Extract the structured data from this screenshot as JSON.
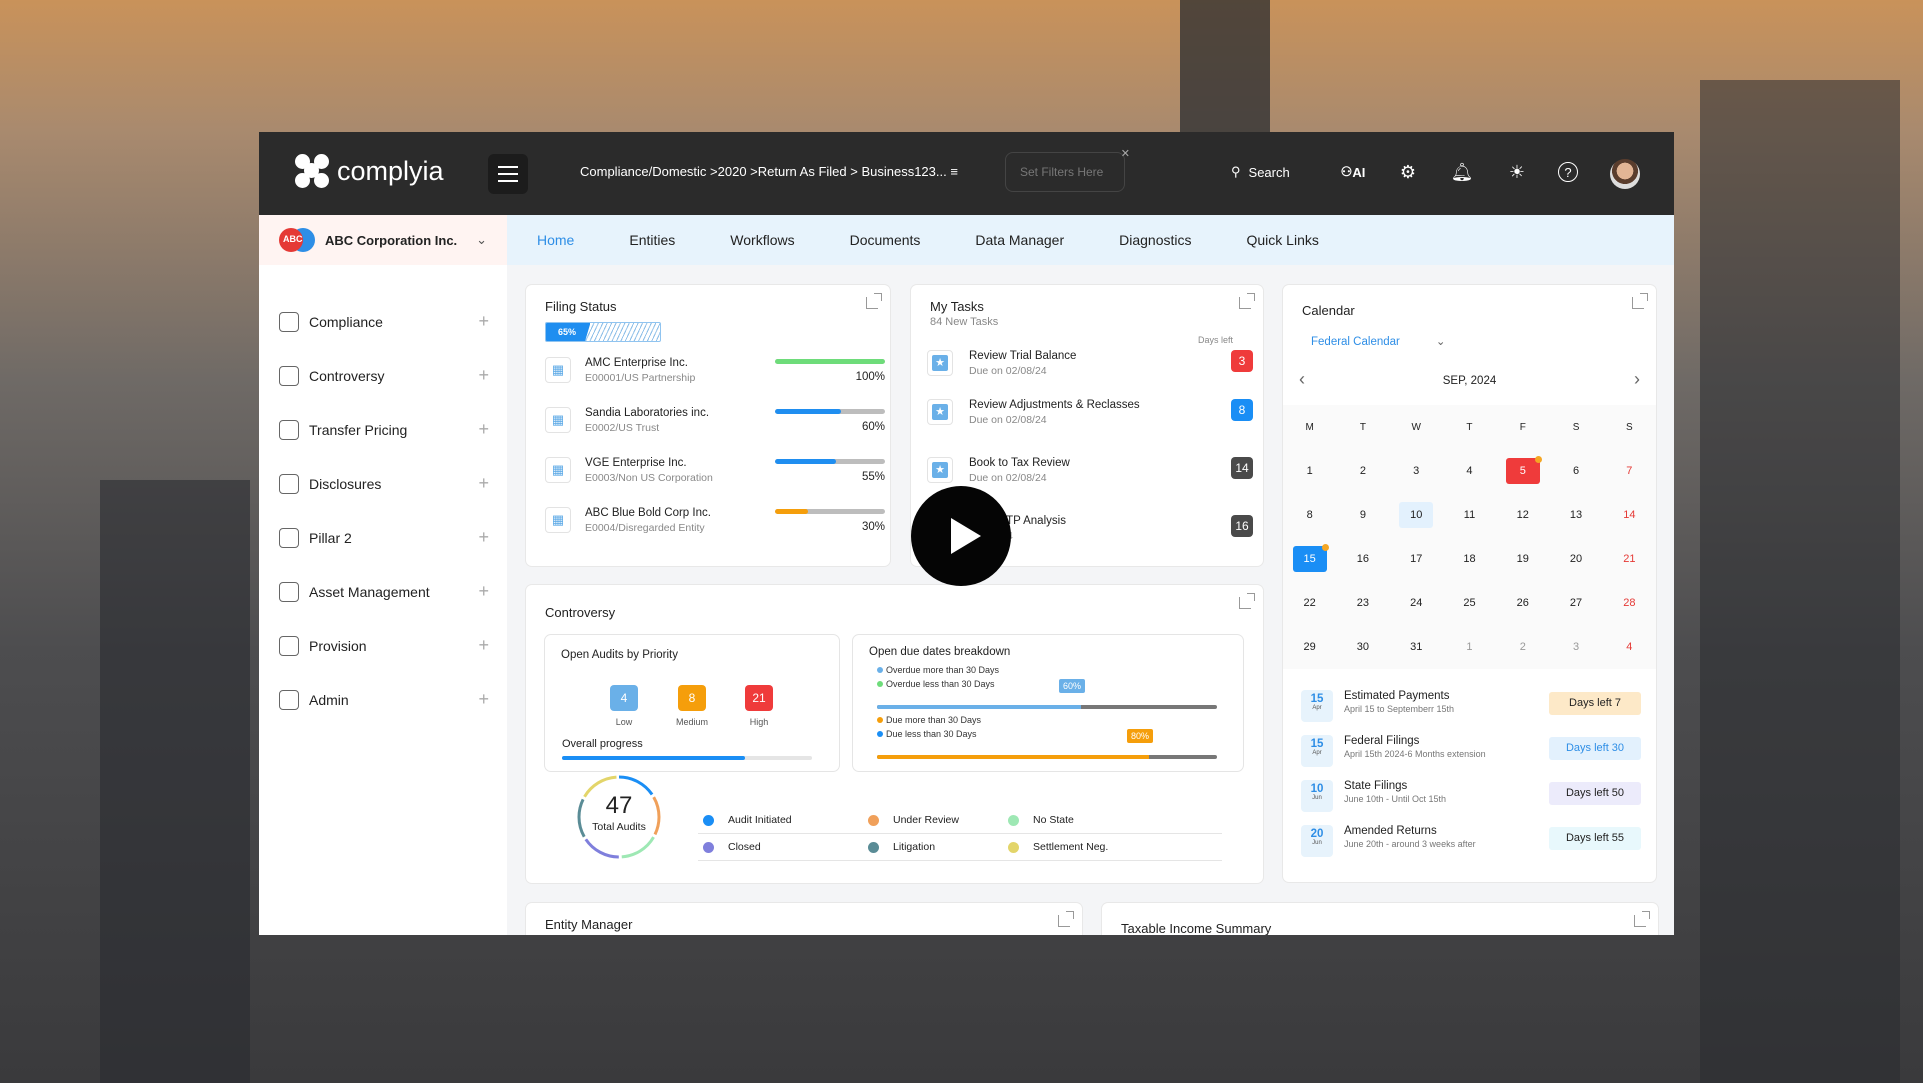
{
  "header": {
    "brand": "complyia",
    "breadcrumb": "Compliance/Domestic >2020 >Return As Filed > Business123...",
    "filter_placeholder": "Set Filters Here",
    "search_label": "Search",
    "ai_label": "AI"
  },
  "company": {
    "initials": "ABC",
    "name": "ABC Corporation Inc."
  },
  "sidebar": {
    "items": [
      {
        "label": "Compliance",
        "icon": "bank-icon"
      },
      {
        "label": "Controversy",
        "icon": "clipboard-icon"
      },
      {
        "label": "Transfer Pricing",
        "icon": "chart-icon"
      },
      {
        "label": "Disclosures",
        "icon": "user-icon"
      },
      {
        "label": "Pillar 2",
        "icon": "globe-icon"
      },
      {
        "label": "Asset Management",
        "icon": "building-icon"
      },
      {
        "label": "Provision",
        "icon": "dollar-icon"
      },
      {
        "label": "Admin",
        "icon": "admin-icon"
      }
    ]
  },
  "tabs": [
    {
      "label": "Home",
      "active": true
    },
    {
      "label": "Entities"
    },
    {
      "label": "Workflows"
    },
    {
      "label": "Documents"
    },
    {
      "label": "Data Manager"
    },
    {
      "label": "Diagnostics"
    },
    {
      "label": "Quick Links"
    }
  ],
  "filing": {
    "title": "Filing Status",
    "overall": "65%",
    "overall_value": 65,
    "rows": [
      {
        "name": "AMC Enterprise Inc.",
        "sub": "E00001/US Partnership",
        "pct": "100%",
        "value": 100,
        "color": "#6edc7a"
      },
      {
        "name": "Sandia Laboratories inc.",
        "sub": "E0002/US Trust",
        "pct": "60%",
        "value": 60,
        "color": "#1f8ef0"
      },
      {
        "name": "VGE Enterprise Inc.",
        "sub": "E0003/Non US Corporation",
        "pct": "55%",
        "value": 55,
        "color": "#1f8ef0"
      },
      {
        "name": "ABC Blue Bold Corp Inc.",
        "sub": "E0004/Disregarded Entity",
        "pct": "30%",
        "value": 30,
        "color": "#f59e0b"
      }
    ]
  },
  "tasks": {
    "title": "My Tasks",
    "subtitle": "84 New Tasks",
    "days_left_label": "Days left",
    "rows": [
      {
        "name": "Review Trial Balance",
        "due": "Due on 02/08/24",
        "days": "3",
        "color": "#ef3b3b"
      },
      {
        "name": "Review Adjustments & Reclasses",
        "due": "Due on 02/08/24",
        "days": "8",
        "color": "#1a8ef5"
      },
      {
        "name": "Book to Tax Review",
        "due": "Due on 02/08/24",
        "days": "14",
        "color": "#4a4a4a"
      },
      {
        "name": "...ete UTP Analysis",
        "due": "...2/08/24",
        "days": "16",
        "color": "#4a4a4a"
      }
    ]
  },
  "controversy": {
    "title": "Controversy",
    "priority": {
      "title": "Open Audits by Priority",
      "items": [
        {
          "value": "4",
          "label": "Low",
          "color": "#6ab0e8"
        },
        {
          "value": "8",
          "label": "Medium",
          "color": "#f59e0b"
        },
        {
          "value": "21",
          "label": "High",
          "color": "#ef3b3b"
        }
      ],
      "progress_label": "Overall progress",
      "progress": 73
    },
    "due": {
      "title": "Open due dates breakdown",
      "overdue": {
        "legend": [
          {
            "label": "Overdue more than 30 Days",
            "color": "#6ab0e8"
          },
          {
            "label": "Overdue less than 30 Days",
            "color": "#6edc7a"
          }
        ],
        "pct": "60%",
        "value": 60,
        "color": "#6ab0e8"
      },
      "upcoming": {
        "legend": [
          {
            "label": "Due more than 30 Days",
            "color": "#f59e0b"
          },
          {
            "label": "Due less than 30 Days",
            "color": "#1a8ef5"
          }
        ],
        "pct": "80%",
        "value": 80,
        "color": "#f59e0b"
      }
    },
    "total": {
      "value": "47",
      "label": "Total Audits"
    },
    "status": [
      {
        "label": "Audit Initiated",
        "color": "#1a8ef5"
      },
      {
        "label": "Under Review",
        "color": "#f0a05a"
      },
      {
        "label": "No State",
        "color": "#9ee8b4"
      },
      {
        "label": "Closed",
        "color": "#7f7fdc"
      },
      {
        "label": "Litigation",
        "color": "#5a8c96"
      },
      {
        "label": "Settlement Neg.",
        "color": "#e3d56a"
      }
    ]
  },
  "calendar": {
    "title": "Calendar",
    "selector": "Federal Calendar",
    "month": "SEP, 2024",
    "weekdays": [
      "M",
      "T",
      "W",
      "T",
      "F",
      "S",
      "S"
    ],
    "weeks": [
      [
        "1",
        "2",
        "3",
        "4",
        "5",
        "6",
        "7"
      ],
      [
        "8",
        "9",
        "10",
        "11",
        "12",
        "13",
        "14"
      ],
      [
        "15",
        "16",
        "17",
        "18",
        "19",
        "20",
        "21"
      ],
      [
        "22",
        "23",
        "24",
        "25",
        "26",
        "27",
        "28"
      ],
      [
        "29",
        "30",
        "31",
        "1",
        "2",
        "3",
        "4"
      ]
    ],
    "events": [
      {
        "day": "15",
        "mon": "Apr",
        "title": "Estimated Payments",
        "sub": "April 15 to Septemberr 15th",
        "badge": "Days left 7",
        "bg": "#fde9c8",
        "fg": "#222"
      },
      {
        "day": "15",
        "mon": "Apr",
        "title": "Federal Filings",
        "sub": "April 15th 2024-6 Months extension",
        "badge": "Days left 30",
        "bg": "#e3f1fd",
        "fg": "#2e8ee6"
      },
      {
        "day": "10",
        "mon": "Jun",
        "title": "State Filings",
        "sub": "June 10th - Until Oct 15th",
        "badge": "Days left 50",
        "bg": "#ecebfb",
        "fg": "#222"
      },
      {
        "day": "20",
        "mon": "Jun",
        "title": "Amended Returns",
        "sub": "June 20th - around 3 weeks after",
        "badge": "Days left 55",
        "bg": "#e8f8fc",
        "fg": "#222"
      }
    ]
  },
  "entity_manager": {
    "title": "Entity Manager"
  },
  "taxable_income": {
    "title": "Taxable Income Summary"
  }
}
